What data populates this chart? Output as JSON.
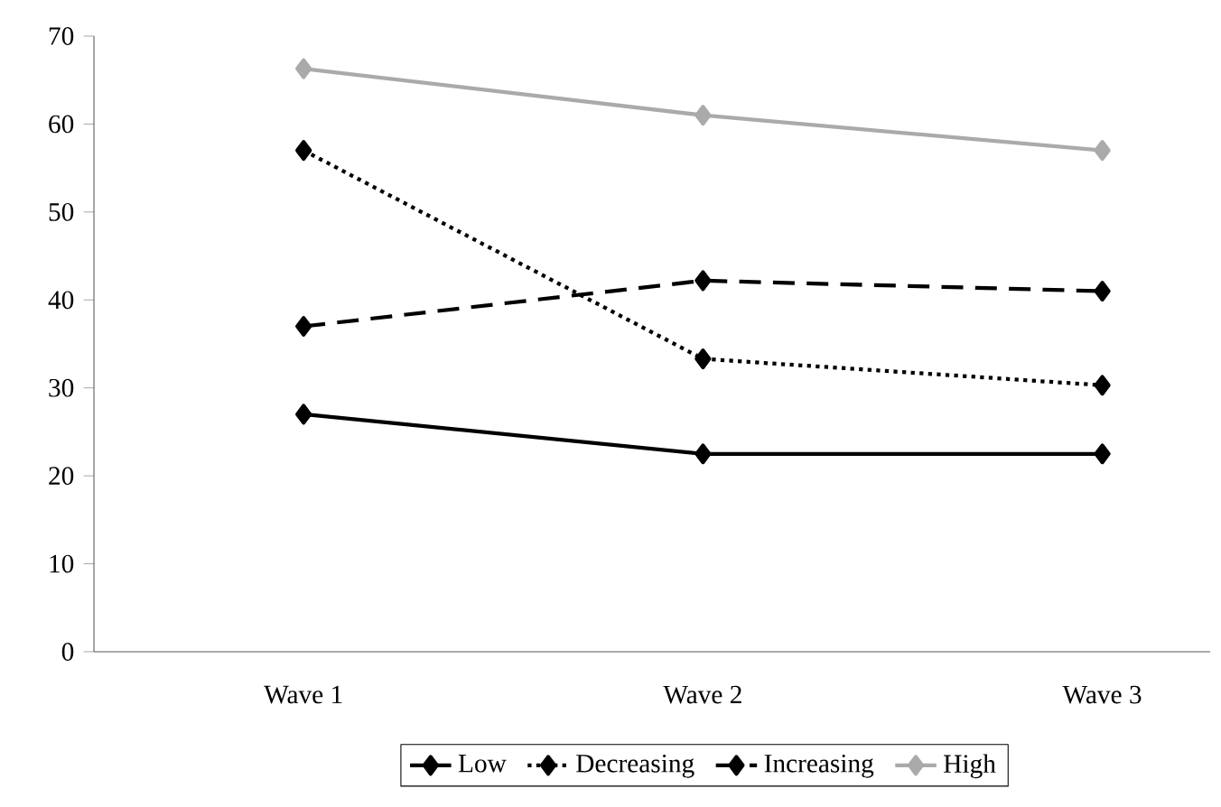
{
  "chart_data": {
    "type": "line",
    "categories": [
      "Wave 1",
      "Wave 2",
      "Wave 3"
    ],
    "series": [
      {
        "name": "Low",
        "color": "#000000",
        "line_style": "solid",
        "values": [
          27,
          22.5,
          22.5
        ]
      },
      {
        "name": "Decreasing",
        "color": "#000000",
        "line_style": "dotted",
        "values": [
          57,
          33.3,
          30.3
        ]
      },
      {
        "name": "Increasing",
        "color": "#000000",
        "line_style": "dashed",
        "values": [
          37,
          42.2,
          41
        ]
      },
      {
        "name": "High",
        "color": "#aaaaaa",
        "line_style": "solid",
        "values": [
          66.3,
          61,
          57
        ]
      }
    ],
    "ylim": [
      0,
      70
    ],
    "yticks": [
      0,
      10,
      20,
      30,
      40,
      50,
      60,
      70
    ],
    "marker": "diamond",
    "legend": "bottom",
    "grid": false
  }
}
